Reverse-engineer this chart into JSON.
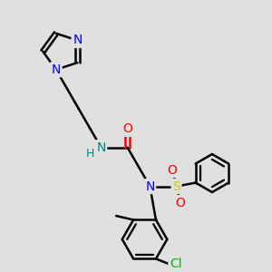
{
  "bg_color": "#e0e0e0",
  "atom_colors": {
    "N": "#0000ff",
    "O": "#ff0000",
    "S": "#cccc00",
    "Cl": "#00bb00",
    "NH": "#008888",
    "C": "#000000"
  },
  "bond_color": "#000000",
  "bond_width": 1.8,
  "font_size": 9,
  "figsize": [
    3.0,
    3.0
  ],
  "dpi": 100
}
